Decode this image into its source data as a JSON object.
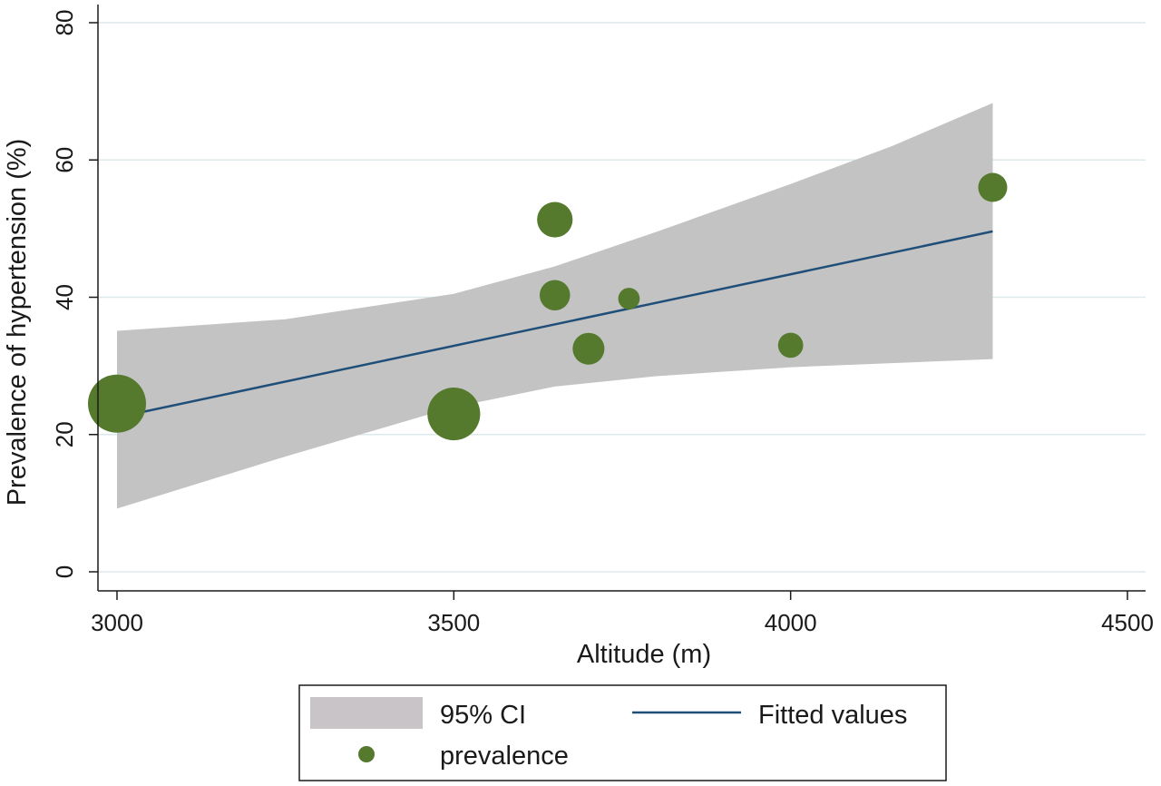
{
  "chart_data": {
    "type": "scatter",
    "xlabel": "Altitude (m)",
    "ylabel": "Prevalence of hypertension (%)",
    "xlim": [
      3000,
      4500
    ],
    "ylim": [
      0,
      80
    ],
    "x_ticks": [
      3000,
      3500,
      4000,
      4500
    ],
    "y_ticks": [
      0,
      20,
      40,
      60,
      80
    ],
    "x_tick_labels": [
      "3000",
      "3500",
      "4000",
      "4500"
    ],
    "y_tick_labels": [
      "0",
      "20",
      "40",
      "60",
      "80"
    ],
    "grid": true,
    "legend_position": "bottom",
    "series": [
      {
        "name": "prevalence",
        "kind": "bubble",
        "color": "#557a2d",
        "points": [
          {
            "x": 3000,
            "y": 24.5,
            "weight": 4.0
          },
          {
            "x": 3500,
            "y": 23.0,
            "weight": 3.3
          },
          {
            "x": 3650,
            "y": 51.3,
            "weight": 1.5
          },
          {
            "x": 3650,
            "y": 40.3,
            "weight": 1.1
          },
          {
            "x": 3700,
            "y": 32.5,
            "weight": 1.2
          },
          {
            "x": 3760,
            "y": 39.8,
            "weight": 0.55
          },
          {
            "x": 4000,
            "y": 33.0,
            "weight": 0.75
          },
          {
            "x": 4300,
            "y": 56.0,
            "weight": 1.0
          }
        ]
      },
      {
        "name": "Fitted values",
        "kind": "line",
        "color": "#1f4e79",
        "x": [
          3000,
          4300
        ],
        "y": [
          22.5,
          49.6
        ]
      },
      {
        "name": "95% CI",
        "kind": "band",
        "color": "#c3c3c3",
        "x": [
          3000,
          3250,
          3500,
          3650,
          3800,
          4000,
          4150,
          4300
        ],
        "lower": [
          9.2,
          16.8,
          24.0,
          27.0,
          28.5,
          29.8,
          30.4,
          31.0
        ],
        "upper": [
          35.1,
          36.8,
          40.5,
          44.5,
          49.5,
          56.5,
          62.0,
          68.3
        ]
      }
    ],
    "legend": {
      "entries": [
        {
          "label": "95% CI",
          "symbol": "band",
          "color": "#c8c4c7"
        },
        {
          "label": "Fitted values",
          "symbol": "line",
          "color": "#1f4e79"
        },
        {
          "label": "prevalence",
          "symbol": "dot",
          "color": "#557a2d"
        }
      ]
    }
  }
}
